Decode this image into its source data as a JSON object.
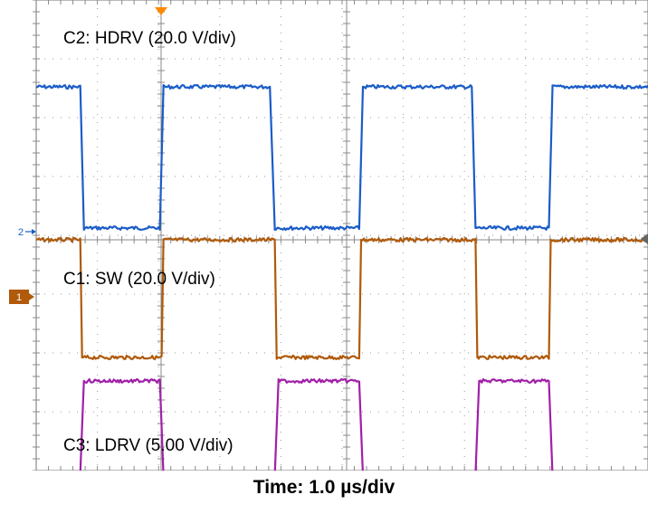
{
  "chart_data": {
    "type": "line",
    "title": "",
    "xlabel": "Time: 1.0 µs/div",
    "x_unit": "µs",
    "xlim": [
      0,
      10
    ],
    "y_unit": "div",
    "ylim": [
      -4,
      4
    ],
    "grid": true,
    "series": [
      {
        "name": "C2: HDRV (20.0 V/div)",
        "color": "#1a5cc8",
        "marker": "2",
        "x": [
          0,
          0.72,
          0.78,
          2.02,
          2.08,
          3.82,
          3.9,
          5.28,
          5.34,
          7.12,
          7.18,
          8.38,
          8.44,
          10
        ],
        "y": [
          2.6,
          2.6,
          0.2,
          0.2,
          2.6,
          2.6,
          0.2,
          0.2,
          2.6,
          2.6,
          0.2,
          0.2,
          2.6,
          2.6
        ]
      },
      {
        "name": "C1: SW (20.0 V/div)",
        "color": "#b05a0a",
        "marker": "1",
        "x": [
          0,
          0.72,
          0.75,
          2.05,
          2.08,
          3.9,
          3.93,
          5.28,
          5.31,
          7.18,
          7.21,
          8.38,
          8.41,
          10
        ],
        "y": [
          0,
          0,
          -2.0,
          -2.0,
          0,
          0,
          -2.0,
          -2.0,
          0,
          0,
          -2.0,
          -2.0,
          0,
          0
        ]
      },
      {
        "name": "C3: LDRV (5.00 V/div)",
        "color": "#a020a8",
        "marker": "3",
        "x": [
          0,
          0.72,
          0.78,
          2.02,
          2.08,
          3.9,
          3.96,
          5.28,
          5.34,
          7.18,
          7.24,
          8.38,
          8.44,
          10
        ],
        "y": [
          -4.0,
          -4.0,
          -2.4,
          -2.4,
          -4.0,
          -4.0,
          -2.4,
          -2.4,
          -4.0,
          -4.0,
          -2.4,
          -2.4,
          -4.0,
          -4.0
        ]
      }
    ]
  },
  "colors": {
    "grid": "#9a9a9a",
    "frame": "#8a8a8a",
    "trigger": "#ff8800"
  }
}
